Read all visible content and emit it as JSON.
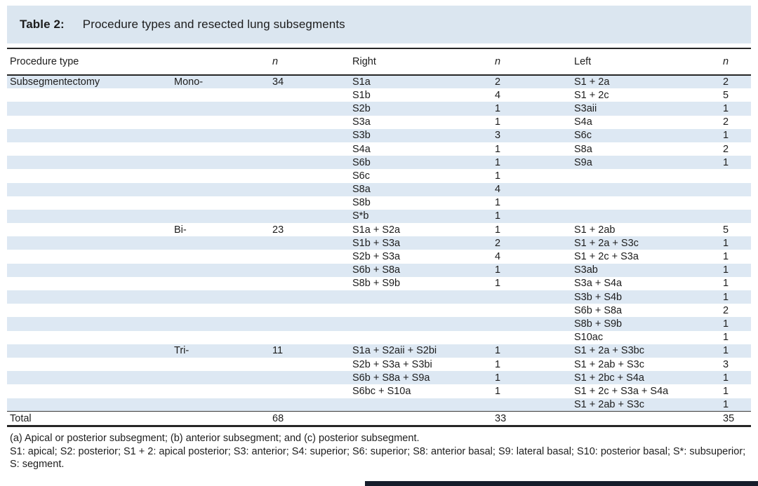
{
  "colors": {
    "title_band_bg": "#dbe6f0",
    "stripe_bg": "#dde8f3",
    "rule": "#262626",
    "text": "#1d1d1d",
    "bottom_bar": "#161d2b"
  },
  "title": {
    "label": "Table 2:",
    "text": "Procedure types and resected lung subsegments"
  },
  "table": {
    "headers": {
      "procedure_type": "Procedure type",
      "subtype": "",
      "n1": "n",
      "right": "Right",
      "n2": "n",
      "left": "Left",
      "n3": "n"
    },
    "rows": [
      {
        "proc": "Subsegmentectomy",
        "sub": "Mono-",
        "n": "34",
        "right": "S1a",
        "right_n": "2",
        "left": "S1 + 2a",
        "left_n": "2"
      },
      {
        "proc": "",
        "sub": "",
        "n": "",
        "right": "S1b",
        "right_n": "4",
        "left": "S1 + 2c",
        "left_n": "5"
      },
      {
        "proc": "",
        "sub": "",
        "n": "",
        "right": "S2b",
        "right_n": "1",
        "left": "S3aii",
        "left_n": "1"
      },
      {
        "proc": "",
        "sub": "",
        "n": "",
        "right": "S3a",
        "right_n": "1",
        "left": "S4a",
        "left_n": "2"
      },
      {
        "proc": "",
        "sub": "",
        "n": "",
        "right": "S3b",
        "right_n": "3",
        "left": "S6c",
        "left_n": "1"
      },
      {
        "proc": "",
        "sub": "",
        "n": "",
        "right": "S4a",
        "right_n": "1",
        "left": "S8a",
        "left_n": "2"
      },
      {
        "proc": "",
        "sub": "",
        "n": "",
        "right": "S6b",
        "right_n": "1",
        "left": "S9a",
        "left_n": "1"
      },
      {
        "proc": "",
        "sub": "",
        "n": "",
        "right": "S6c",
        "right_n": "1",
        "left": "",
        "left_n": ""
      },
      {
        "proc": "",
        "sub": "",
        "n": "",
        "right": "S8a",
        "right_n": "4",
        "left": "",
        "left_n": ""
      },
      {
        "proc": "",
        "sub": "",
        "n": "",
        "right": "S8b",
        "right_n": "1",
        "left": "",
        "left_n": ""
      },
      {
        "proc": "",
        "sub": "",
        "n": "",
        "right": "S*b",
        "right_n": "1",
        "left": "",
        "left_n": ""
      },
      {
        "proc": "",
        "sub": "Bi-",
        "n": "23",
        "right": "S1a + S2a",
        "right_n": "1",
        "left": "S1 + 2ab",
        "left_n": "5"
      },
      {
        "proc": "",
        "sub": "",
        "n": "",
        "right": "S1b + S3a",
        "right_n": "2",
        "left": "S1 + 2a + S3c",
        "left_n": "1"
      },
      {
        "proc": "",
        "sub": "",
        "n": "",
        "right": "S2b + S3a",
        "right_n": "4",
        "left": "S1 + 2c + S3a",
        "left_n": "1"
      },
      {
        "proc": "",
        "sub": "",
        "n": "",
        "right": "S6b + S8a",
        "right_n": "1",
        "left": "S3ab",
        "left_n": "1"
      },
      {
        "proc": "",
        "sub": "",
        "n": "",
        "right": "S8b + S9b",
        "right_n": "1",
        "left": "S3a + S4a",
        "left_n": "1"
      },
      {
        "proc": "",
        "sub": "",
        "n": "",
        "right": "",
        "right_n": "",
        "left": "S3b + S4b",
        "left_n": "1"
      },
      {
        "proc": "",
        "sub": "",
        "n": "",
        "right": "",
        "right_n": "",
        "left": "S6b + S8a",
        "left_n": "2"
      },
      {
        "proc": "",
        "sub": "",
        "n": "",
        "right": "",
        "right_n": "",
        "left": "S8b + S9b",
        "left_n": "1"
      },
      {
        "proc": "",
        "sub": "",
        "n": "",
        "right": "",
        "right_n": "",
        "left": "S10ac",
        "left_n": "1"
      },
      {
        "proc": "",
        "sub": "Tri-",
        "n": "11",
        "right": "S1a + S2aii + S2bi",
        "right_n": "1",
        "left": "S1 + 2a + S3bc",
        "left_n": "1"
      },
      {
        "proc": "",
        "sub": "",
        "n": "",
        "right": "S2b + S3a + S3bi",
        "right_n": "1",
        "left": "S1 + 2ab + S3c",
        "left_n": "3"
      },
      {
        "proc": "",
        "sub": "",
        "n": "",
        "right": "S6b + S8a + S9a",
        "right_n": "1",
        "left": "S1 + 2bc + S4a",
        "left_n": "1"
      },
      {
        "proc": "",
        "sub": "",
        "n": "",
        "right": "S6bc + S10a",
        "right_n": "1",
        "left": "S1 + 2c + S3a + S4a",
        "left_n": "1"
      },
      {
        "proc": "",
        "sub": "",
        "n": "",
        "right": "",
        "right_n": "",
        "left": "S1 + 2ab + S3c",
        "left_n": "1"
      }
    ],
    "total": {
      "label": "Total",
      "n": "68",
      "right_n": "33",
      "left_n": "35"
    }
  },
  "footnotes": [
    "(a) Apical or posterior subsegment; (b) anterior subsegment; and (c) posterior subsegment.",
    "S1: apical; S2: posterior; S1 + 2: apical posterior; S3: anterior; S4: superior; S6: superior; S8: anterior basal; S9: lateral basal; S10: posterior basal; S*: subsuperior; S: segment."
  ]
}
